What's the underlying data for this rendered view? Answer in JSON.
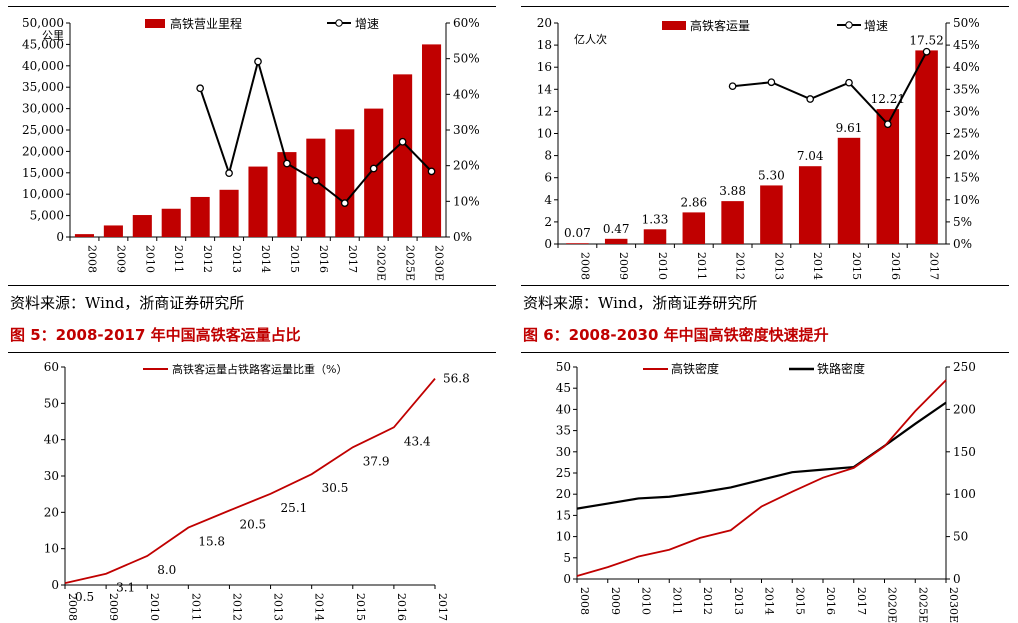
{
  "colors": {
    "bar": "#C00000",
    "line": "#000000",
    "red_line": "#C00000",
    "title_red": "#C00000"
  },
  "sources": {
    "left": "资料来源：Wind，浙商证券研究所",
    "right": "资料来源：Wind，浙商证券研究所"
  },
  "figure_titles": {
    "fig5": "图 5：2008-2017 年中国高铁客运量占比",
    "fig6": "图 6：2008-2030 年中国高铁密度快速提升"
  },
  "chart_data": [
    {
      "type": "bar",
      "categories": [
        "2008",
        "2009",
        "2010",
        "2011",
        "2012",
        "2013",
        "2014",
        "2015",
        "2016",
        "2017",
        "2020E",
        "2025E",
        "2030E"
      ],
      "series": [
        {
          "name": "高铁营业里程",
          "values": [
            672,
            2699,
            5133,
            6601,
            9356,
            11028,
            16456,
            19838,
            22980,
            25164,
            30000,
            38000,
            45000
          ]
        },
        {
          "name": "增速",
          "type": "line",
          "axis": "right",
          "values": [
            null,
            null,
            null,
            null,
            41.7,
            17.9,
            49.2,
            20.6,
            15.8,
            9.5,
            19.2,
            26.7,
            18.4
          ]
        }
      ],
      "ylabel_inline": "公里",
      "ylim": [
        0,
        50000
      ],
      "y_ticks": [
        "0",
        "5,000",
        "10,000",
        "15,000",
        "20,000",
        "25,000",
        "30,000",
        "35,000",
        "40,000",
        "45,000",
        "50,000"
      ],
      "y2lim": [
        0,
        60
      ],
      "y2_ticks": [
        "0%",
        "10%",
        "20%",
        "30%",
        "40%",
        "50%",
        "60%"
      ],
      "legend": "top"
    },
    {
      "type": "bar",
      "categories": [
        "2008",
        "2009",
        "2010",
        "2011",
        "2012",
        "2013",
        "2014",
        "2015",
        "2016",
        "2017"
      ],
      "series": [
        {
          "name": "高铁客运量",
          "values": [
            0.07,
            0.47,
            1.33,
            2.86,
            3.88,
            5.3,
            7.04,
            9.61,
            12.21,
            17.52
          ],
          "labels": [
            "0.07",
            "0.47",
            "1.33",
            "2.86",
            "3.88",
            "5.30",
            "7.04",
            "9.61",
            "12.21",
            "17.52"
          ]
        },
        {
          "name": "增速",
          "type": "line",
          "axis": "right",
          "values": [
            null,
            null,
            null,
            null,
            35.7,
            36.6,
            32.8,
            36.5,
            27.1,
            43.5
          ]
        }
      ],
      "ylabel_inline": "亿人次",
      "ylim": [
        0,
        20
      ],
      "y_ticks": [
        "0",
        "2",
        "4",
        "6",
        "8",
        "10",
        "12",
        "14",
        "16",
        "18",
        "20"
      ],
      "y2lim": [
        0,
        50
      ],
      "y2_ticks": [
        "0%",
        "5%",
        "10%",
        "15%",
        "20%",
        "25%",
        "30%",
        "35%",
        "40%",
        "45%",
        "50%"
      ],
      "legend": "top"
    },
    {
      "type": "line",
      "categories": [
        "2008",
        "2009",
        "2010",
        "2011",
        "2012",
        "2013",
        "2014",
        "2015",
        "2016",
        "2017"
      ],
      "series": [
        {
          "name": "高铁客运量占铁路客运量比重（%）",
          "values": [
            0.5,
            3.1,
            8.0,
            15.8,
            20.5,
            25.1,
            30.5,
            37.9,
            43.4,
            56.8
          ],
          "labels": [
            "0.5",
            "3.1",
            "8.0",
            "15.8",
            "20.5",
            "25.1",
            "30.5",
            "37.9",
            "43.4",
            "56.8"
          ]
        }
      ],
      "ylim": [
        0,
        60
      ],
      "y_ticks": [
        "0",
        "10",
        "20",
        "30",
        "40",
        "50",
        "60"
      ],
      "legend": "top"
    },
    {
      "type": "line",
      "categories": [
        "2008",
        "2009",
        "2010",
        "2011",
        "2012",
        "2013",
        "2014",
        "2015",
        "2016",
        "2017",
        "2020E",
        "2025E",
        "2030E"
      ],
      "series": [
        {
          "name": "高铁密度",
          "color": "#C00000",
          "axis": "left",
          "values": [
            0.7,
            2.8,
            5.3,
            6.9,
            9.7,
            11.5,
            17.1,
            20.6,
            23.9,
            26.2,
            31.3,
            39.6,
            46.9
          ]
        },
        {
          "name": "铁路密度",
          "color": "#000000",
          "axis": "right",
          "values": [
            83,
            89,
            95,
            97,
            102,
            108,
            117,
            126,
            129,
            132,
            157,
            183,
            208
          ]
        }
      ],
      "ylim": [
        0,
        50
      ],
      "y_ticks": [
        "0",
        "5",
        "10",
        "15",
        "20",
        "25",
        "30",
        "35",
        "40",
        "45",
        "50"
      ],
      "y2lim": [
        0,
        250
      ],
      "y2_ticks": [
        "0",
        "50",
        "100",
        "150",
        "200",
        "250"
      ],
      "legend": "top"
    }
  ]
}
